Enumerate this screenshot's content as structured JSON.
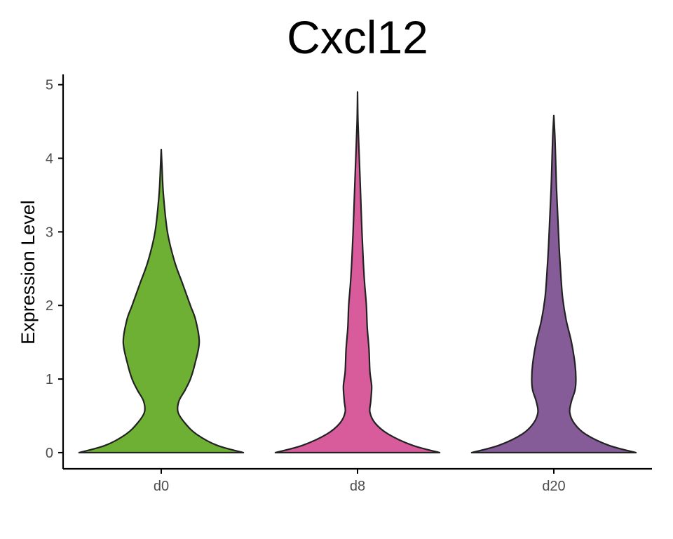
{
  "chart_data": {
    "type": "violin",
    "title": "Cxcl12",
    "xlabel": "",
    "ylabel": "Expression Level",
    "ylim": [
      -0.22,
      5.14
    ],
    "yticks": [
      0,
      1,
      2,
      3,
      4,
      5
    ],
    "grid": false,
    "legend": "none",
    "categories": [
      "d0",
      "d8",
      "d20"
    ],
    "colors": [
      "#6db033",
      "#d85c9c",
      "#855b98"
    ],
    "violins": [
      {
        "name": "d0",
        "max": 4.12,
        "profile": [
          [
            0.0,
            0.93
          ],
          [
            0.1,
            0.63
          ],
          [
            0.25,
            0.4
          ],
          [
            0.4,
            0.27
          ],
          [
            0.55,
            0.19
          ],
          [
            0.7,
            0.2
          ],
          [
            0.85,
            0.27
          ],
          [
            1.0,
            0.33
          ],
          [
            1.2,
            0.38
          ],
          [
            1.5,
            0.43
          ],
          [
            1.8,
            0.39
          ],
          [
            2.0,
            0.33
          ],
          [
            2.3,
            0.24
          ],
          [
            2.6,
            0.15
          ],
          [
            3.0,
            0.07
          ],
          [
            3.5,
            0.025
          ],
          [
            3.9,
            0.008
          ],
          [
            4.12,
            0.0
          ]
        ]
      },
      {
        "name": "d8",
        "max": 4.9,
        "profile": [
          [
            0.0,
            0.93
          ],
          [
            0.1,
            0.62
          ],
          [
            0.25,
            0.35
          ],
          [
            0.4,
            0.2
          ],
          [
            0.55,
            0.14
          ],
          [
            0.7,
            0.15
          ],
          [
            0.9,
            0.16
          ],
          [
            1.1,
            0.14
          ],
          [
            1.4,
            0.13
          ],
          [
            1.7,
            0.11
          ],
          [
            2.0,
            0.1
          ],
          [
            2.3,
            0.08
          ],
          [
            2.6,
            0.065
          ],
          [
            3.0,
            0.05
          ],
          [
            3.5,
            0.035
          ],
          [
            4.0,
            0.02
          ],
          [
            4.5,
            0.005
          ],
          [
            4.9,
            0.0
          ]
        ]
      },
      {
        "name": "d20",
        "max": 4.58,
        "profile": [
          [
            0.0,
            0.93
          ],
          [
            0.1,
            0.62
          ],
          [
            0.25,
            0.36
          ],
          [
            0.4,
            0.23
          ],
          [
            0.55,
            0.18
          ],
          [
            0.7,
            0.2
          ],
          [
            0.85,
            0.24
          ],
          [
            1.0,
            0.25
          ],
          [
            1.2,
            0.24
          ],
          [
            1.5,
            0.2
          ],
          [
            1.8,
            0.14
          ],
          [
            2.1,
            0.1
          ],
          [
            2.4,
            0.08
          ],
          [
            2.8,
            0.06
          ],
          [
            3.2,
            0.045
          ],
          [
            3.6,
            0.03
          ],
          [
            4.0,
            0.02
          ],
          [
            4.3,
            0.012
          ],
          [
            4.58,
            0.0
          ]
        ]
      }
    ]
  }
}
